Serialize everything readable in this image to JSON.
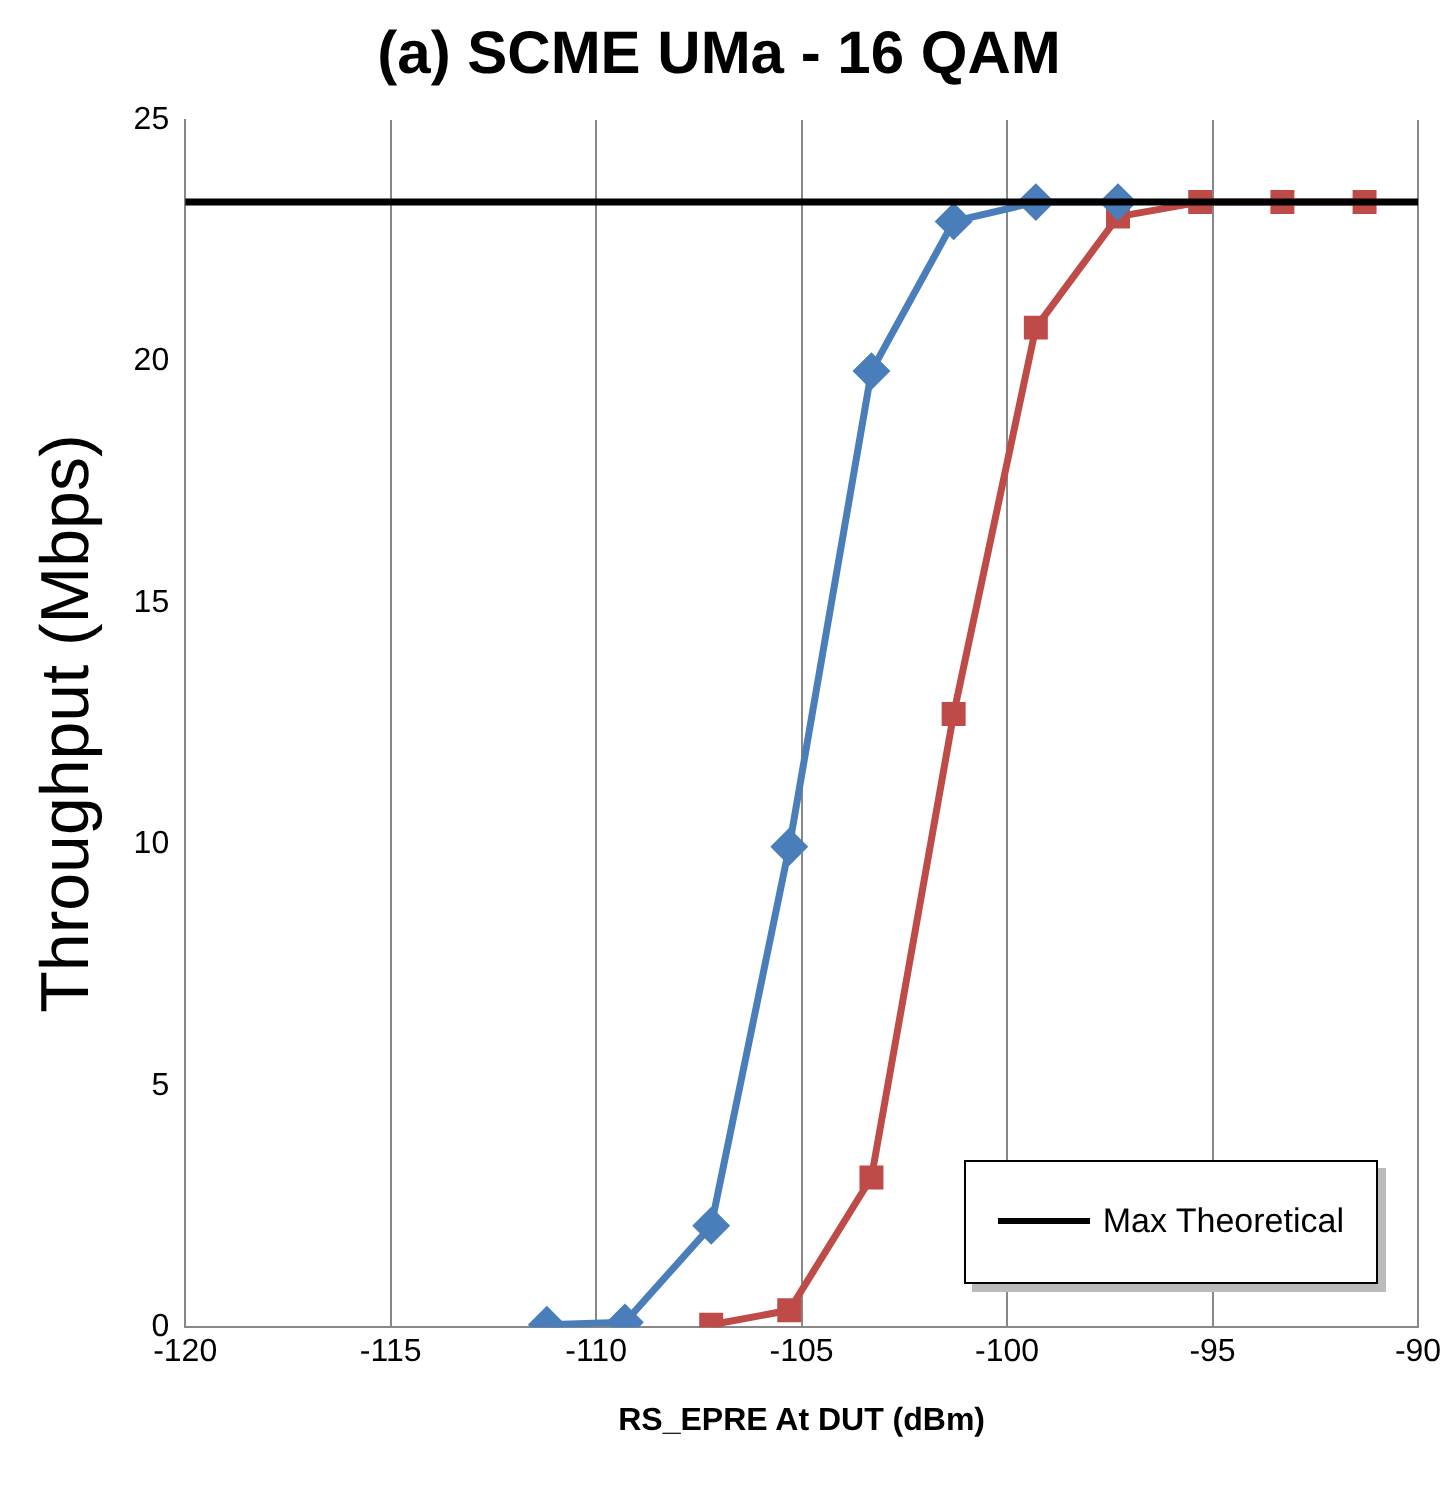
{
  "chart_data": {
    "type": "line",
    "title": "(a) SCME UMa - 16 QAM",
    "xlabel": "RS_EPRE At DUT (dBm)",
    "ylabel": "Throughput (Mbps)",
    "xlim": [
      -120,
      -90
    ],
    "xticks": [
      -120,
      -115,
      -110,
      -105,
      -100,
      -95,
      -90
    ],
    "ylim": [
      0,
      25
    ],
    "yticks": [
      0,
      5,
      10,
      15,
      20,
      25
    ],
    "grid": "x",
    "legend": "bottom right",
    "series": [
      {
        "name": "Max Theoretical",
        "color": "#000000",
        "marker": "none",
        "x": [
          -120,
          -90
        ],
        "values": [
          23.3,
          23.3
        ]
      },
      {
        "color": "#4a7ebb",
        "marker": "diamond",
        "x": [
          -111.2,
          -109.3,
          -107.2,
          -105.3,
          -103.3,
          -101.3,
          -99.3,
          -97.3
        ],
        "values": [
          0.05,
          0.1,
          2.1,
          9.95,
          19.8,
          22.9,
          23.3,
          23.3
        ]
      },
      {
        "color": "#be4b48",
        "marker": "square",
        "x": [
          -107.2,
          -105.3,
          -103.3,
          -101.3,
          -99.3,
          -97.3,
          -95.3,
          -93.3,
          -91.3
        ],
        "values": [
          0.05,
          0.35,
          3.1,
          12.7,
          20.7,
          23.0,
          23.3,
          23.3,
          23.3
        ]
      }
    ]
  }
}
